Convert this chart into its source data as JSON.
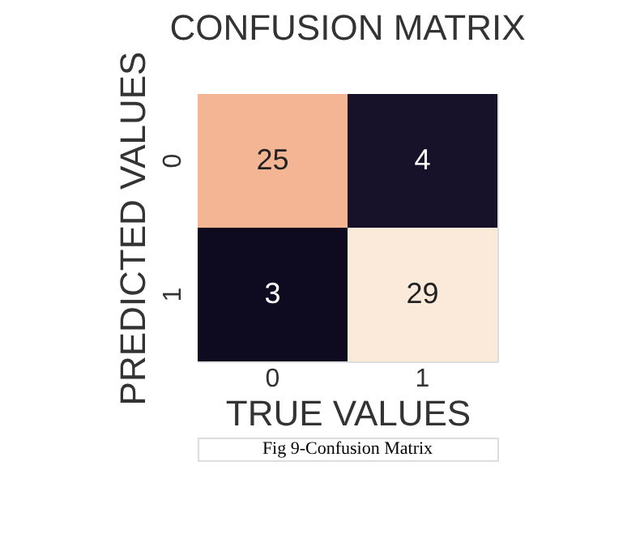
{
  "chart_data": {
    "type": "heatmap",
    "title": "CONFUSION MATRIX",
    "xlabel": "TRUE VALUES",
    "ylabel": "PREDICTED VALUES",
    "categories": [
      "0",
      "1"
    ],
    "y_categories": [
      "0",
      "1"
    ],
    "cells": [
      [
        25,
        4
      ],
      [
        3,
        29
      ]
    ],
    "data_labels": true,
    "annotations": [
      "Fig 9-Confusion Matrix"
    ]
  }
}
